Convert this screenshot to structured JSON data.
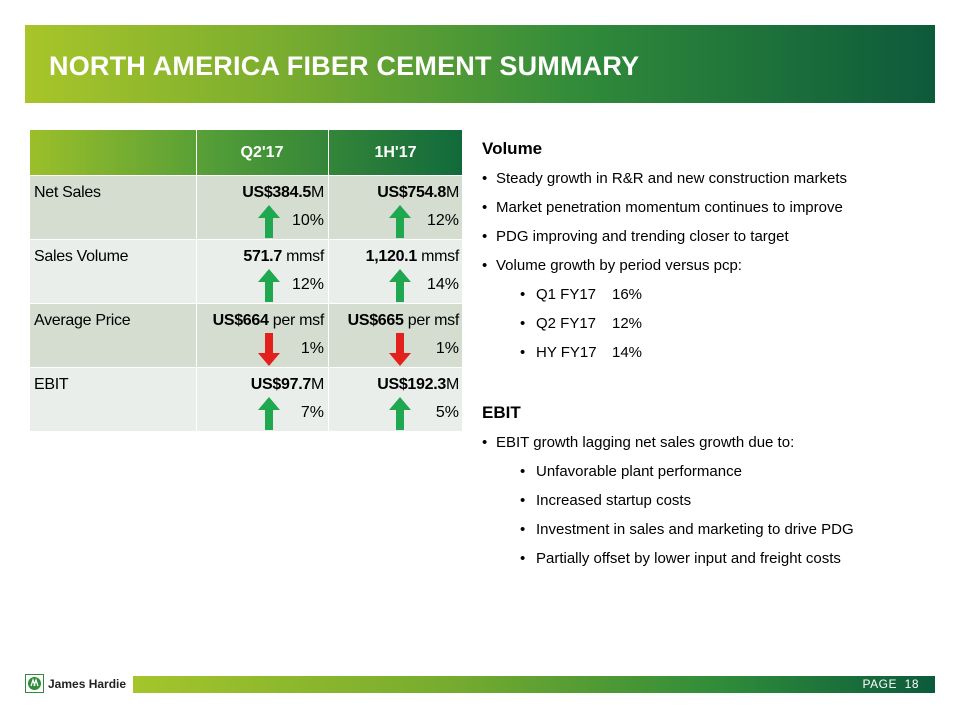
{
  "title": "NORTH AMERICA FIBER CEMENT SUMMARY",
  "table": {
    "columns": [
      "Q2'17",
      "1H'17"
    ],
    "rows": [
      {
        "label": "Net Sales",
        "q2": {
          "bold": "US$384.5",
          "unit": "M",
          "pct": "10%",
          "direction": "up"
        },
        "h1": {
          "bold": "US$754.8",
          "unit": "M",
          "pct": "12%",
          "direction": "up"
        }
      },
      {
        "label": "Sales Volume",
        "q2": {
          "bold": "571.7",
          "unit": " mmsf",
          "pct": "12%",
          "direction": "up"
        },
        "h1": {
          "bold": "1,120.1",
          "unit": " mmsf",
          "pct": "14%",
          "direction": "up"
        }
      },
      {
        "label": "Average Price",
        "q2": {
          "bold": "US$664",
          "unit": " per msf",
          "pct": "1%",
          "direction": "down"
        },
        "h1": {
          "bold": "US$665",
          "unit": " per msf",
          "pct": "1%",
          "direction": "down"
        }
      },
      {
        "label": "EBIT",
        "q2": {
          "bold": "US$97.7",
          "unit": "M",
          "pct": "7%",
          "direction": "up"
        },
        "h1": {
          "bold": "US$192.3",
          "unit": "M",
          "pct": "5%",
          "direction": "up"
        }
      }
    ]
  },
  "volume": {
    "heading": "Volume",
    "bullets": [
      "Steady growth in R&R and new construction markets",
      "Market penetration momentum continues to improve",
      "PDG improving and trending closer to target",
      "Volume growth by period versus pcp:"
    ],
    "periods": [
      {
        "period": "Q1 FY17",
        "value": "16%"
      },
      {
        "period": "Q2 FY17",
        "value": "12%"
      },
      {
        "period": "HY FY17",
        "value": "14%"
      }
    ]
  },
  "ebit": {
    "heading": "EBIT",
    "bullet": "EBIT growth lagging net sales growth due to:",
    "sub_bullets": [
      "Unfavorable plant performance",
      "Increased startup costs",
      "Investment in sales and marketing to drive PDG",
      "Partially offset by lower input and freight costs"
    ]
  },
  "footer": {
    "brand": "James Hardie",
    "page_label": "PAGE",
    "page_number": "18"
  },
  "colors": {
    "arrow_up": "#1fa84f",
    "arrow_down": "#e3201b",
    "brand_dark": "#0d5a3b",
    "brand_light": "#a8c52a"
  }
}
